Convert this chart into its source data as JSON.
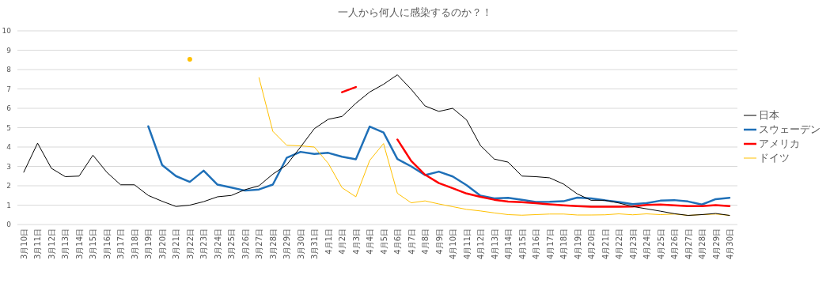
{
  "chart_data": {
    "type": "line",
    "title": "一人から何人に感染するのか？！",
    "categories": [
      "3月10日",
      "3月11日",
      "3月12日",
      "3月13日",
      "3月14日",
      "3月15日",
      "3月16日",
      "3月17日",
      "3月18日",
      "3月19日",
      "3月20日",
      "3月21日",
      "3月22日",
      "3月23日",
      "3月24日",
      "3月25日",
      "3月26日",
      "3月27日",
      "3月28日",
      "3月29日",
      "3月30日",
      "3月31日",
      "4月1日",
      "4月2日",
      "4月3日",
      "4月4日",
      "4月5日",
      "4月6日",
      "4月7日",
      "4月8日",
      "4月9日",
      "4月10日",
      "4月11日",
      "4月12日",
      "4月13日",
      "4月14日",
      "4月15日",
      "4月16日",
      "4月17日",
      "4月18日",
      "4月19日",
      "4月20日",
      "4月21日",
      "4月22日",
      "4月23日",
      "4月24日",
      "4月25日",
      "4月26日",
      "4月27日",
      "4月28日",
      "4月29日",
      "4月30日"
    ],
    "series": [
      {
        "name": "日本",
        "color": "#000000",
        "values": [
          2.7,
          4.2,
          2.9,
          2.47,
          2.5,
          3.58,
          2.7,
          2.05,
          2.05,
          1.5,
          1.2,
          0.93,
          1.0,
          1.18,
          1.43,
          1.5,
          1.8,
          2.0,
          2.6,
          3.08,
          4.0,
          4.95,
          5.43,
          5.58,
          6.26,
          6.84,
          7.24,
          7.73,
          6.98,
          6.12,
          5.84,
          6.0,
          5.4,
          4.08,
          3.38,
          3.22,
          2.5,
          2.47,
          2.41,
          2.09,
          1.58,
          1.25,
          1.25,
          1.11,
          0.93,
          0.81,
          0.69,
          0.56,
          0.47,
          0.51,
          0.57,
          0.47
        ]
      },
      {
        "name": "スウェーデン",
        "color": "#1f70b8",
        "values": [
          null,
          null,
          null,
          null,
          null,
          null,
          null,
          null,
          null,
          5.07,
          3.07,
          2.5,
          2.2,
          2.78,
          2.06,
          1.91,
          1.75,
          1.81,
          2.06,
          3.44,
          3.75,
          3.64,
          3.7,
          3.5,
          3.37,
          5.06,
          4.75,
          3.38,
          3.0,
          2.55,
          2.73,
          2.48,
          2.03,
          1.49,
          1.35,
          1.38,
          1.28,
          1.16,
          1.17,
          1.2,
          1.39,
          1.35,
          1.25,
          1.16,
          1.05,
          1.1,
          1.23,
          1.26,
          1.19,
          1.03,
          1.31,
          1.38
        ]
      },
      {
        "name": "アメリカ",
        "color": "#ff0000",
        "values": [
          null,
          null,
          null,
          null,
          null,
          null,
          null,
          null,
          null,
          null,
          null,
          null,
          null,
          null,
          null,
          null,
          null,
          null,
          null,
          null,
          null,
          null,
          null,
          6.83,
          7.1,
          null,
          null,
          4.39,
          3.28,
          2.57,
          2.14,
          1.87,
          1.6,
          1.43,
          1.28,
          1.18,
          1.15,
          1.1,
          1.04,
          0.99,
          0.95,
          0.92,
          0.92,
          0.92,
          0.93,
          1.01,
          1.03,
          0.99,
          0.95,
          0.95,
          1.0,
          0.95
        ]
      },
      {
        "name": "ドイツ",
        "color": "#ffc000",
        "values": [
          null,
          null,
          null,
          null,
          null,
          null,
          null,
          null,
          null,
          null,
          null,
          null,
          8.53,
          null,
          null,
          null,
          null,
          7.58,
          4.81,
          4.09,
          4.06,
          4.0,
          3.16,
          1.9,
          1.43,
          3.31,
          4.18,
          1.61,
          1.12,
          1.22,
          1.06,
          0.92,
          0.78,
          0.7,
          0.6,
          0.51,
          0.48,
          0.51,
          0.54,
          0.54,
          0.49,
          0.49,
          0.5,
          0.55,
          0.5,
          0.55,
          0.51,
          0.54,
          0.47,
          0.51,
          0.54,
          0.47
        ]
      }
    ],
    "ylim": [
      0,
      10
    ],
    "yticks": [
      0,
      1,
      2,
      3,
      4,
      5,
      6,
      7,
      8,
      9,
      10
    ],
    "grid": "y",
    "legend": "right"
  }
}
